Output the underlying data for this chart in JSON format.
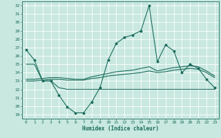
{
  "xlabel": "Humidex (Indice chaleur)",
  "background_color": "#c8e8e0",
  "grid_color": "#ffffff",
  "line_color": "#1a6b5c",
  "xlim": [
    -0.5,
    23.5
  ],
  "ylim": [
    18.5,
    32.5
  ],
  "xticks": [
    0,
    1,
    2,
    3,
    4,
    5,
    6,
    7,
    8,
    9,
    10,
    11,
    12,
    13,
    14,
    15,
    16,
    17,
    18,
    19,
    20,
    21,
    22,
    23
  ],
  "yticks": [
    19,
    20,
    21,
    22,
    23,
    24,
    25,
    26,
    27,
    28,
    29,
    30,
    31,
    32
  ],
  "main_x": [
    0,
    1,
    2,
    3,
    4,
    5,
    6,
    7,
    8,
    9,
    10,
    11,
    12,
    13,
    14,
    15,
    16,
    17,
    18,
    19,
    20,
    21,
    22,
    23
  ],
  "main_y": [
    26.7,
    25.5,
    23.0,
    23.0,
    21.3,
    19.9,
    19.2,
    19.2,
    20.5,
    22.2,
    25.5,
    27.5,
    28.2,
    28.5,
    29.0,
    32.0,
    25.3,
    27.3,
    26.6,
    24.0,
    25.0,
    24.5,
    23.2,
    22.2
  ],
  "flat_x": [
    0,
    1,
    2,
    3,
    4,
    5,
    6,
    7,
    8,
    9,
    10,
    11,
    12,
    13,
    14,
    15,
    16,
    17,
    18,
    19,
    20,
    21,
    22,
    23
  ],
  "flat_y": [
    25.0,
    25.0,
    23.0,
    23.0,
    22.2,
    22.0,
    22.0,
    22.0,
    22.0,
    22.0,
    22.0,
    22.0,
    22.0,
    22.0,
    22.0,
    22.0,
    22.0,
    22.0,
    22.0,
    22.0,
    22.0,
    22.0,
    22.0,
    22.0
  ],
  "trend_lo_x": [
    0,
    1,
    2,
    3,
    4,
    5,
    6,
    7,
    8,
    9,
    10,
    11,
    12,
    13,
    14,
    15,
    16,
    17,
    18,
    19,
    20,
    21,
    22,
    23
  ],
  "trend_lo_y": [
    23.0,
    23.0,
    23.1,
    23.2,
    23.2,
    23.1,
    23.1,
    23.1,
    23.3,
    23.4,
    23.6,
    23.7,
    23.8,
    23.9,
    24.0,
    24.2,
    24.0,
    24.1,
    24.3,
    24.4,
    24.5,
    24.4,
    24.0,
    23.4
  ],
  "trend_hi_x": [
    0,
    1,
    2,
    3,
    4,
    5,
    6,
    7,
    8,
    9,
    10,
    11,
    12,
    13,
    14,
    15,
    16,
    17,
    18,
    19,
    20,
    21,
    22,
    23
  ],
  "trend_hi_y": [
    23.2,
    23.2,
    23.3,
    23.4,
    23.4,
    23.3,
    23.2,
    23.2,
    23.5,
    23.7,
    23.9,
    24.1,
    24.2,
    24.3,
    24.5,
    24.7,
    24.2,
    24.4,
    24.6,
    24.7,
    24.8,
    24.7,
    24.2,
    23.6
  ]
}
